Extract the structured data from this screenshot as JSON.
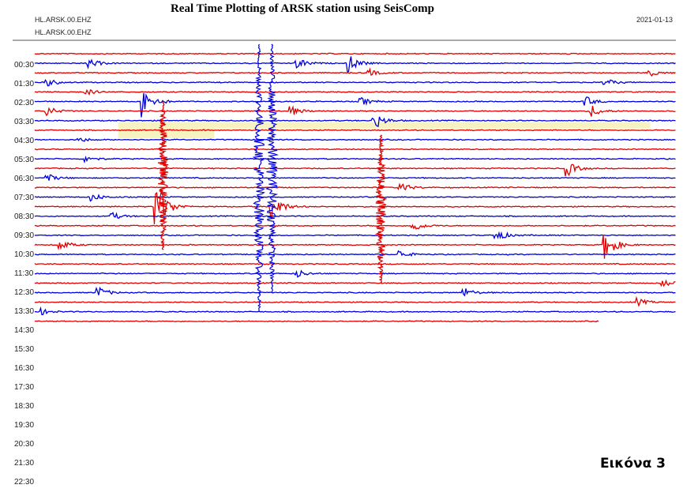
{
  "chart_data": {
    "type": "line",
    "title": "Real Time Plotting of ARSK station using SeisComp",
    "stream_labels": [
      "HL.ARSK.00.EHZ",
      "HL.ARSK.00.EHZ"
    ],
    "date": "2021-01-13",
    "caption": "Εικόνα 3",
    "y_tick_labels": [
      "00:30",
      "01:30",
      "02:30",
      "03:30",
      "04:30",
      "05:30",
      "06:30",
      "07:30",
      "08:30",
      "09:30",
      "10:30",
      "11:30",
      "12:30",
      "13:30",
      "14:30",
      "15:30",
      "16:30",
      "17:30",
      "18:30",
      "19:30",
      "20:30",
      "21:30",
      "22:30"
    ],
    "trace_count": 29,
    "colors": {
      "trace_a": "#e00000",
      "trace_b": "#0000dd",
      "gap": "#f7f3c0",
      "axis": "#555555"
    },
    "events": [
      {
        "trace": 1,
        "x": 0.085,
        "amplitude": 12
      },
      {
        "trace": 1,
        "x": 0.41,
        "amplitude": 14
      },
      {
        "trace": 1,
        "x": 0.49,
        "amplitude": 22
      },
      {
        "trace": 2,
        "x": 0.52,
        "amplitude": 10
      },
      {
        "trace": 2,
        "x": 0.96,
        "amplitude": 9
      },
      {
        "trace": 3,
        "x": 0.02,
        "amplitude": 10
      },
      {
        "trace": 3,
        "x": 0.89,
        "amplitude": 10
      },
      {
        "trace": 4,
        "x": 0.08,
        "amplitude": 8
      },
      {
        "trace": 5,
        "x": 0.17,
        "amplitude": 40
      },
      {
        "trace": 5,
        "x": 0.51,
        "amplitude": 10
      },
      {
        "trace": 5,
        "x": 0.86,
        "amplitude": 12
      },
      {
        "trace": 6,
        "x": 0.02,
        "amplitude": 12
      },
      {
        "trace": 6,
        "x": 0.4,
        "amplitude": 12
      },
      {
        "trace": 6,
        "x": 0.87,
        "amplitude": 14
      },
      {
        "trace": 7,
        "x": 0.53,
        "amplitude": 22
      },
      {
        "trace": 9,
        "x": 0.07,
        "amplitude": 6
      },
      {
        "trace": 11,
        "x": 0.08,
        "amplitude": 9
      },
      {
        "trace": 12,
        "x": 0.83,
        "amplitude": 20
      },
      {
        "trace": 13,
        "x": 0.02,
        "amplitude": 10
      },
      {
        "trace": 14,
        "x": 0.57,
        "amplitude": 14
      },
      {
        "trace": 15,
        "x": 0.09,
        "amplitude": 10
      },
      {
        "trace": 16,
        "x": 0.19,
        "amplitude": 80
      },
      {
        "trace": 16,
        "x": 0.37,
        "amplitude": 38
      },
      {
        "trace": 17,
        "x": 0.12,
        "amplitude": 10
      },
      {
        "trace": 18,
        "x": 0.59,
        "amplitude": 16
      },
      {
        "trace": 19,
        "x": 0.72,
        "amplitude": 16
      },
      {
        "trace": 20,
        "x": 0.04,
        "amplitude": 12
      },
      {
        "trace": 20,
        "x": 0.89,
        "amplitude": 40
      },
      {
        "trace": 21,
        "x": 0.57,
        "amplitude": 10
      },
      {
        "trace": 23,
        "x": 0.41,
        "amplitude": 10
      },
      {
        "trace": 24,
        "x": 0.98,
        "amplitude": 8
      },
      {
        "trace": 25,
        "x": 0.1,
        "amplitude": 14
      },
      {
        "trace": 25,
        "x": 0.67,
        "amplitude": 12
      },
      {
        "trace": 26,
        "x": 0.94,
        "amplitude": 10
      },
      {
        "trace": 27,
        "x": 0.01,
        "amplitude": 8
      }
    ],
    "gaps": [
      {
        "from_trace": 7,
        "to_trace": 9,
        "x_start": 0.13,
        "x_end": 0.28
      },
      {
        "from_trace": 7,
        "to_trace": 8,
        "x_start": 0.28,
        "x_end": 0.96
      }
    ],
    "big_events": [
      {
        "x": 0.2,
        "color": "trace_a",
        "top": 10,
        "bottom": 41
      },
      {
        "x": 0.35,
        "color": "trace_b",
        "top": -2,
        "bottom": 54
      },
      {
        "x": 0.37,
        "color": "trace_b",
        "top": -2,
        "bottom": 50
      },
      {
        "x": 0.54,
        "color": "trace_a",
        "top": 17,
        "bottom": 48
      }
    ]
  }
}
